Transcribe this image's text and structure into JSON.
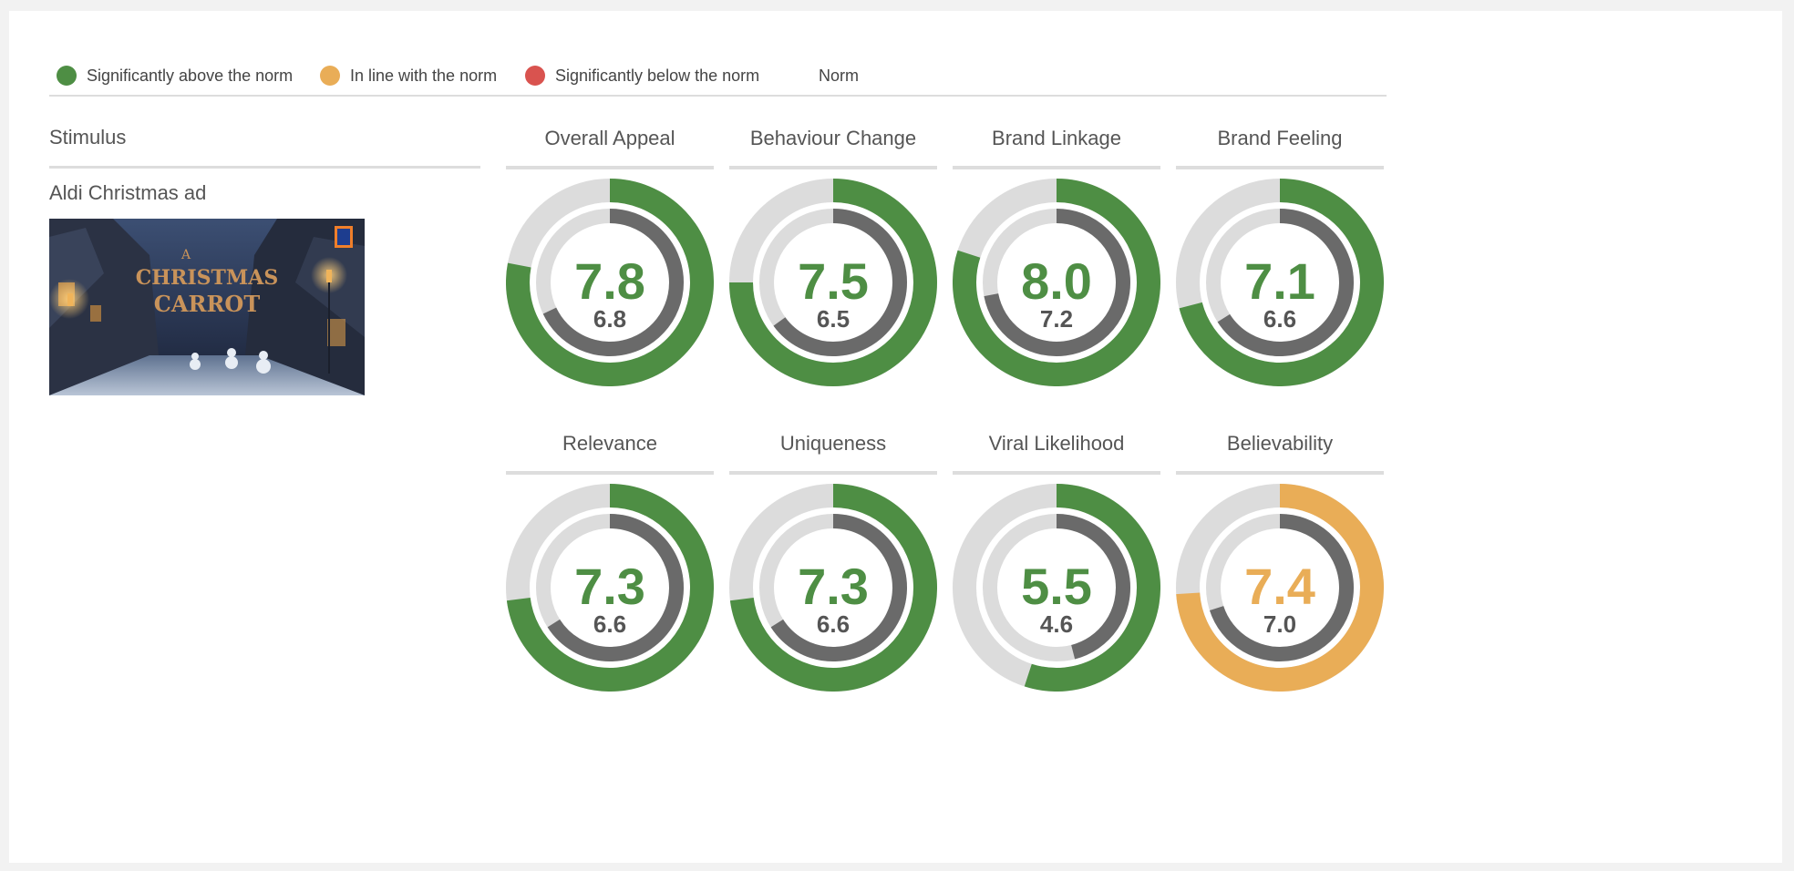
{
  "legend": {
    "items": [
      {
        "label": "Significantly above the norm",
        "color": "#4e8e44"
      },
      {
        "label": "In line with the norm",
        "color": "#e9ad57"
      },
      {
        "label": "Significantly below the norm",
        "color": "#d9534f"
      }
    ],
    "norm_label": "Norm"
  },
  "stimulus": {
    "header": "Stimulus",
    "name": "Aldi Christmas ad",
    "thumbnail": {
      "title_text": "A CHRISTMAS CARROT",
      "icon": "aldi-logo-icon"
    }
  },
  "colors": {
    "above": "#4e8e44",
    "inline": "#e9ad57",
    "below": "#d9534f",
    "norm_ring": "#6a6a6a",
    "track": "#dcdcdc"
  },
  "chart_data": {
    "type": "gauge",
    "scale_max": 10,
    "metrics": [
      {
        "name": "Overall Appeal",
        "score": 7.8,
        "score_label": "7.8",
        "norm": 6.8,
        "norm_label": "6.8",
        "status": "above"
      },
      {
        "name": "Behaviour Change",
        "score": 7.5,
        "score_label": "7.5",
        "norm": 6.5,
        "norm_label": "6.5",
        "status": "above"
      },
      {
        "name": "Brand Linkage",
        "score": 8.0,
        "score_label": "8.0",
        "norm": 7.2,
        "norm_label": "7.2",
        "status": "above"
      },
      {
        "name": "Brand Feeling",
        "score": 7.1,
        "score_label": "7.1",
        "norm": 6.6,
        "norm_label": "6.6",
        "status": "above"
      },
      {
        "name": "Relevance",
        "score": 7.3,
        "score_label": "7.3",
        "norm": 6.6,
        "norm_label": "6.6",
        "status": "above"
      },
      {
        "name": "Uniqueness",
        "score": 7.3,
        "score_label": "7.3",
        "norm": 6.6,
        "norm_label": "6.6",
        "status": "above"
      },
      {
        "name": "Viral Likelihood",
        "score": 5.5,
        "score_label": "5.5",
        "norm": 4.6,
        "norm_label": "4.6",
        "status": "above"
      },
      {
        "name": "Believability",
        "score": 7.4,
        "score_label": "7.4",
        "norm": 7.0,
        "norm_label": "7.0",
        "status": "inline"
      }
    ]
  }
}
